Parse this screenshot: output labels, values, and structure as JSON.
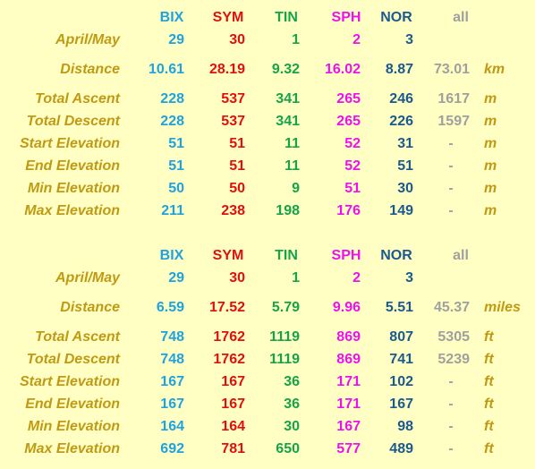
{
  "colors": {
    "background": "#ffffc3",
    "label": "#c09a14",
    "BIX": "#1fa3e0",
    "SYM": "#e01010",
    "TIN": "#16a34a",
    "SPH": "#ee10ee",
    "NOR": "#1a5a8e",
    "all": "#a0a0a0"
  },
  "metric": {
    "headers": [
      "BIX",
      "SYM",
      "TIN",
      "SPH",
      "NOR",
      "all"
    ],
    "rows": [
      {
        "label": "April/May",
        "values": [
          "29",
          "30",
          "1",
          "2",
          "3",
          ""
        ],
        "unit": ""
      },
      {
        "label": "Distance",
        "values": [
          "10.61",
          "28.19",
          "9.32",
          "16.02",
          "8.87",
          "73.01"
        ],
        "unit": "km"
      },
      {
        "label": "Total Ascent",
        "values": [
          "228",
          "537",
          "341",
          "265",
          "246",
          "1617"
        ],
        "unit": "m"
      },
      {
        "label": "Total Descent",
        "values": [
          "228",
          "537",
          "341",
          "265",
          "226",
          "1597"
        ],
        "unit": "m"
      },
      {
        "label": "Start Elevation",
        "values": [
          "51",
          "51",
          "11",
          "52",
          "31",
          "-"
        ],
        "unit": "m"
      },
      {
        "label": "End Elevation",
        "values": [
          "51",
          "51",
          "11",
          "52",
          "51",
          "-"
        ],
        "unit": "m"
      },
      {
        "label": "Min Elevation",
        "values": [
          "50",
          "50",
          "9",
          "51",
          "30",
          "-"
        ],
        "unit": "m"
      },
      {
        "label": "Max Elevation",
        "values": [
          "211",
          "238",
          "198",
          "176",
          "149",
          "-"
        ],
        "unit": "m"
      }
    ]
  },
  "imperial": {
    "headers": [
      "BIX",
      "SYM",
      "TIN",
      "SPH",
      "NOR",
      "all"
    ],
    "rows": [
      {
        "label": "April/May",
        "values": [
          "29",
          "30",
          "1",
          "2",
          "3",
          ""
        ],
        "unit": ""
      },
      {
        "label": "Distance",
        "values": [
          "6.59",
          "17.52",
          "5.79",
          "9.96",
          "5.51",
          "45.37"
        ],
        "unit": "miles"
      },
      {
        "label": "Total Ascent",
        "values": [
          "748",
          "1762",
          "1119",
          "869",
          "807",
          "5305"
        ],
        "unit": "ft"
      },
      {
        "label": "Total Descent",
        "values": [
          "748",
          "1762",
          "1119",
          "869",
          "741",
          "5239"
        ],
        "unit": "ft"
      },
      {
        "label": "Start Elevation",
        "values": [
          "167",
          "167",
          "36",
          "171",
          "102",
          "-"
        ],
        "unit": "ft"
      },
      {
        "label": "End Elevation",
        "values": [
          "167",
          "167",
          "36",
          "171",
          "167",
          "-"
        ],
        "unit": "ft"
      },
      {
        "label": "Min Elevation",
        "values": [
          "164",
          "164",
          "30",
          "167",
          "98",
          "-"
        ],
        "unit": "ft"
      },
      {
        "label": "Max Elevation",
        "values": [
          "692",
          "781",
          "650",
          "577",
          "489",
          "-"
        ],
        "unit": "ft"
      }
    ]
  }
}
